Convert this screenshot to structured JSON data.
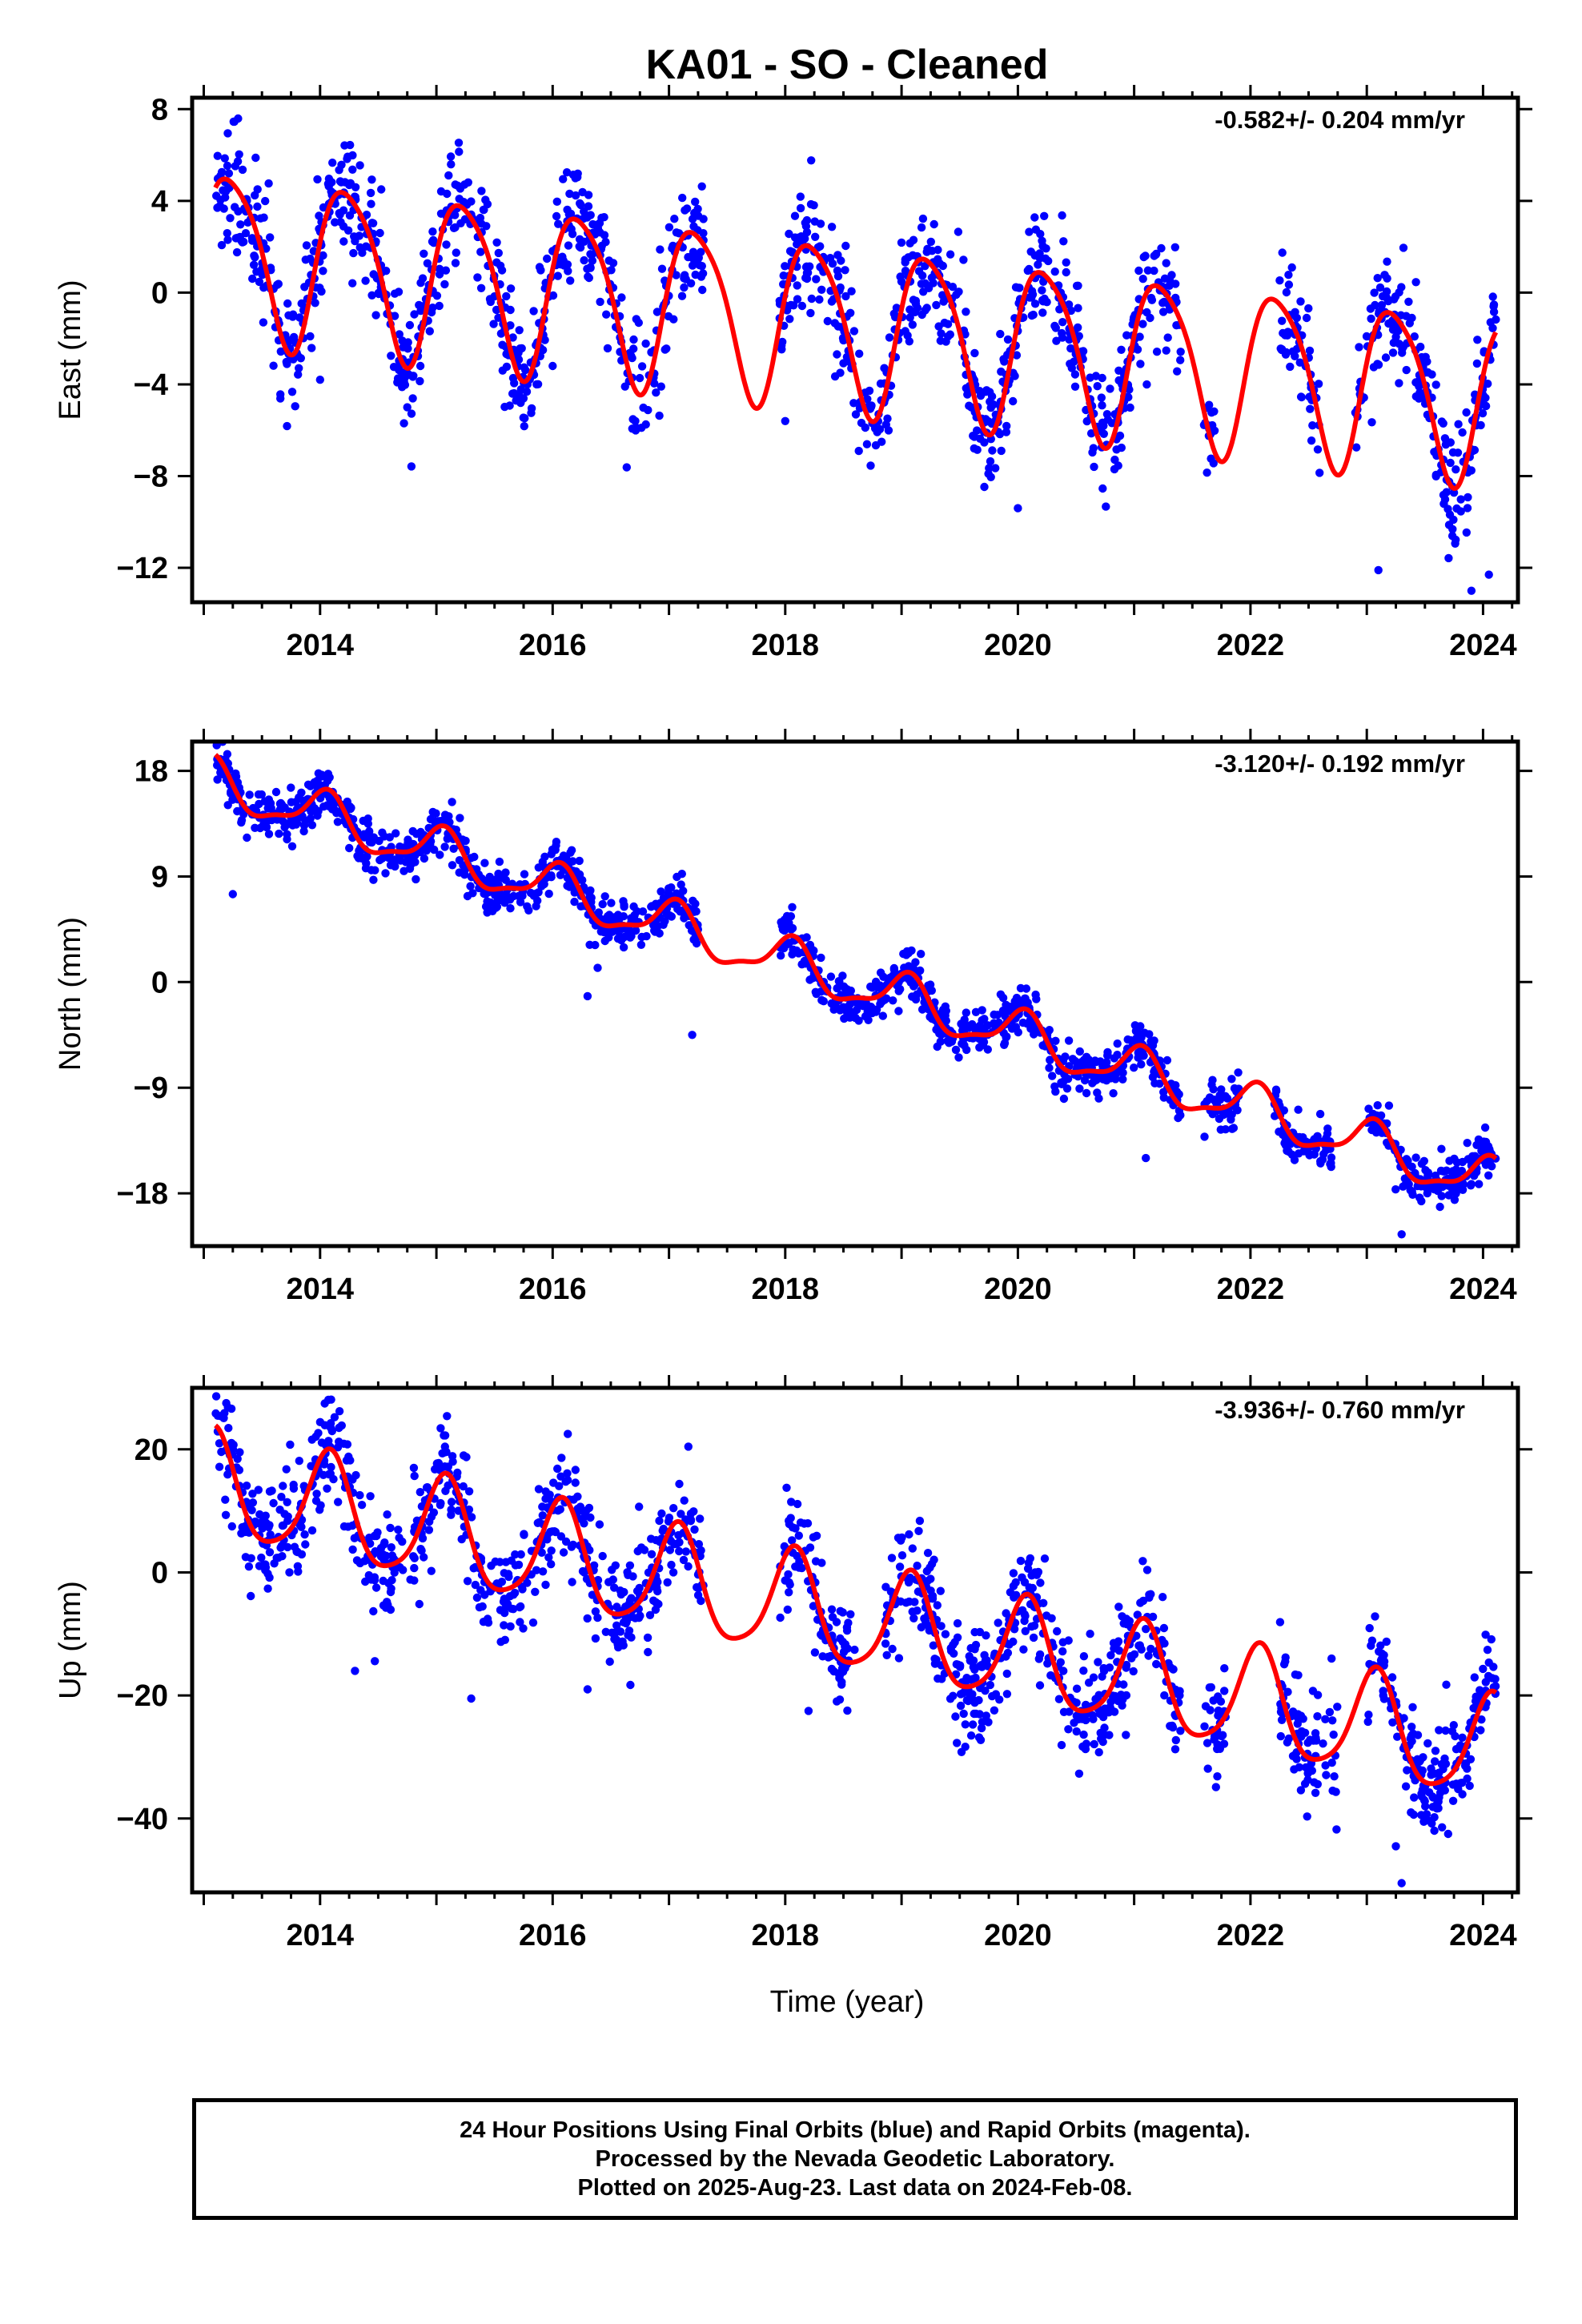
{
  "title": "KA01  - SO - Cleaned",
  "x_axis_label": "Time (year)",
  "caption": [
    "24 Hour Positions Using Final Orbits (blue) and Rapid Orbits (magenta).",
    "Processed by the Nevada Geodetic Laboratory.",
    "Plotted on 2025-Aug-23. Last data on 2024-Feb-08."
  ],
  "colors": {
    "data_points": "#0000ff",
    "model_fit": "#ff0000",
    "axis": "#000000"
  },
  "chart_data": [
    {
      "type": "scatter",
      "ylabel": "East (mm)",
      "rate_label": "-0.582+/- 0.204 mm/yr",
      "xlim": [
        2012.9,
        2024.3
      ],
      "ylim": [
        -13.5,
        8.5
      ],
      "xticks": [
        2014,
        2016,
        2018,
        2020,
        2022,
        2024
      ],
      "yticks": [
        8,
        4,
        0,
        -4,
        -8,
        -12
      ],
      "ytick_labels": [
        "8",
        "4",
        "0",
        "−4",
        "−8",
        "−12"
      ],
      "model": {
        "intercept": 1.8,
        "rate_mm_per_yr": -0.582,
        "annual_amp": 3.6,
        "annual_phase": 0.1,
        "semiannual_amp": 0.6,
        "semiannual_phase": 1.2
      },
      "scatter_sigma": 1.3,
      "data_spans": [
        [
          2013.1,
          2017.3
        ],
        [
          2017.95,
          2018.85
        ],
        [
          2018.85,
          2021.4
        ],
        [
          2021.6,
          2021.7
        ],
        [
          2022.25,
          2022.6
        ],
        [
          2022.9,
          2024.11
        ]
      ],
      "outliers": [
        [
          2014.0,
          -3.8
        ],
        [
          2014.75,
          -5.0
        ],
        [
          2016.0,
          -3.2
        ],
        [
          2018.0,
          -5.6
        ],
        [
          2020.0,
          -9.4
        ],
        [
          2023.1,
          -12.1
        ],
        [
          2023.9,
          -13.0
        ],
        [
          2024.05,
          -12.3
        ]
      ]
    },
    {
      "type": "scatter",
      "ylabel": "North (mm)",
      "rate_label": "-3.120+/- 0.192 mm/yr",
      "xlim": [
        2012.9,
        2024.3
      ],
      "ylim": [
        -22.5,
        20.5
      ],
      "xticks": [
        2014,
        2016,
        2018,
        2020,
        2022,
        2024
      ],
      "yticks": [
        18,
        9,
        0,
        -9,
        -18
      ],
      "ytick_labels": [
        "18",
        "9",
        "0",
        "−9",
        "−18"
      ],
      "model": {
        "intercept": 17.0,
        "rate_mm_per_yr": -3.12,
        "annual_amp": 1.9,
        "annual_phase": 1.3,
        "semiannual_amp": 0.6,
        "semiannual_phase": 0.4
      },
      "scatter_sigma": 1.0,
      "data_spans": [
        [
          2013.1,
          2017.25
        ],
        [
          2017.95,
          2018.85
        ],
        [
          2018.85,
          2021.4
        ],
        [
          2021.6,
          2021.9
        ],
        [
          2022.2,
          2022.7
        ],
        [
          2023.0,
          2024.11
        ]
      ],
      "outliers": [
        [
          2013.25,
          7.5
        ],
        [
          2016.3,
          -1.2
        ],
        [
          2017.2,
          -4.5
        ],
        [
          2021.1,
          -15.0
        ],
        [
          2023.3,
          -21.5
        ]
      ]
    },
    {
      "type": "scatter",
      "ylabel": "Up (mm)",
      "rate_label": "-3.936+/- 0.760 mm/yr",
      "xlim": [
        2012.9,
        2024.3
      ],
      "ylim": [
        -52,
        30
      ],
      "xticks": [
        2014,
        2016,
        2018,
        2020,
        2022,
        2024
      ],
      "yticks": [
        20,
        0,
        -20,
        -40
      ],
      "ytick_labels": [
        "20",
        "0",
        "−20",
        "−40"
      ],
      "model": {
        "intercept": 14.0,
        "rate_mm_per_yr": -3.936,
        "annual_amp": 8.5,
        "annual_phase": 1.1,
        "semiannual_amp": 1.5,
        "semiannual_phase": 0.3
      },
      "scatter_sigma": 4.5,
      "data_spans": [
        [
          2013.1,
          2017.3
        ],
        [
          2017.95,
          2018.6
        ],
        [
          2018.85,
          2021.4
        ],
        [
          2021.6,
          2021.8
        ],
        [
          2022.25,
          2022.75
        ],
        [
          2023.0,
          2024.11
        ]
      ],
      "outliers": [
        [
          2014.3,
          -16.0
        ],
        [
          2015.3,
          -20.5
        ],
        [
          2016.3,
          -19.0
        ],
        [
          2018.2,
          -22.5
        ],
        [
          2023.3,
          -50.5
        ],
        [
          2023.25,
          -44.5
        ],
        [
          2023.7,
          -42.5
        ]
      ]
    }
  ]
}
